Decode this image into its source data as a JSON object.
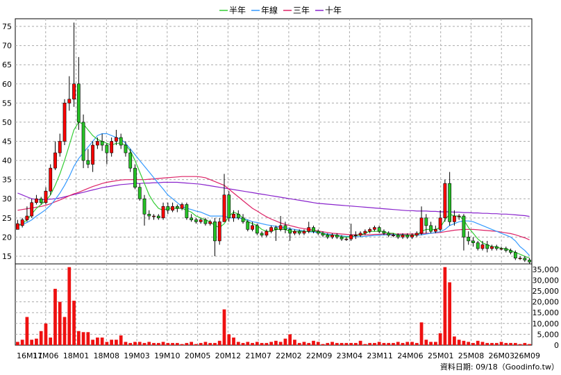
{
  "colors": {
    "up": "#26c226",
    "down": "#ff0000",
    "volume": "#ee1111",
    "ma_half_year": "#33cc33",
    "ma_year": "#3399ff",
    "ma_three_year": "#dd2266",
    "ma_ten_year": "#8822cc",
    "grid": "#aaaaaa",
    "plot_bg": "#ffffff"
  },
  "footer": "資料日期: 09/18（Goodinfo.tw）",
  "chart_data": [
    {
      "type": "candlestick",
      "legend": [
        "半年",
        "年線",
        "三年",
        "十年"
      ],
      "ylim": [
        13,
        77
      ],
      "yticks": [
        15,
        20,
        25,
        30,
        35,
        40,
        45,
        50,
        55,
        60,
        65,
        70,
        75
      ],
      "xtick_labels": [
        "16M11",
        "17M06",
        "18M01",
        "18M08",
        "19M03",
        "19M10",
        "20M05",
        "20M12",
        "21M07",
        "22M02",
        "22M09",
        "23M04",
        "23M11",
        "24M06",
        "25M01",
        "25M08",
        "26M03",
        "26M09"
      ],
      "candles": [
        [
          22,
          23.5,
          24.5,
          22
        ],
        [
          23,
          24.5,
          25,
          22.5
        ],
        [
          24.5,
          25.5,
          28,
          24
        ],
        [
          25.5,
          29,
          30,
          25
        ],
        [
          29,
          30,
          31,
          28.5
        ],
        [
          30,
          29,
          30.5,
          28.5
        ],
        [
          29,
          32,
          33,
          28.5
        ],
        [
          32,
          38,
          39,
          31
        ],
        [
          38,
          42,
          45,
          37.5
        ],
        [
          42,
          45,
          47,
          41
        ],
        [
          45,
          55,
          56,
          44
        ],
        [
          55,
          56,
          62,
          53
        ],
        [
          56,
          60,
          76,
          54
        ],
        [
          60,
          50,
          67,
          48
        ],
        [
          50,
          40,
          52,
          38
        ],
        [
          40,
          39,
          43,
          38
        ],
        [
          39,
          44,
          45,
          37
        ],
        [
          44,
          45,
          46,
          43
        ],
        [
          45,
          44,
          47,
          42.5
        ],
        [
          44,
          42,
          44.5,
          39
        ],
        [
          42,
          45,
          46,
          41
        ],
        [
          45,
          46,
          48,
          44
        ],
        [
          46,
          44,
          47,
          43
        ],
        [
          44,
          42,
          45,
          41
        ],
        [
          42,
          38,
          43,
          37
        ],
        [
          38,
          33,
          39,
          32.5
        ],
        [
          33,
          30,
          34,
          29.5
        ],
        [
          30,
          26,
          31,
          23
        ],
        [
          26,
          25.5,
          27,
          24.5
        ],
        [
          25.5,
          25.5,
          26,
          24.5
        ],
        [
          25.5,
          25,
          26,
          24.5
        ],
        [
          25,
          28,
          29,
          24.5
        ],
        [
          28,
          27,
          29,
          26
        ],
        [
          27,
          28,
          29,
          26.5
        ],
        [
          28,
          27.5,
          28.5,
          26.5
        ],
        [
          27.5,
          28.5,
          29,
          27
        ],
        [
          28.5,
          25,
          29,
          24.5
        ],
        [
          25,
          24.5,
          26,
          24
        ],
        [
          24.5,
          24,
          25,
          23.5
        ],
        [
          24,
          24.5,
          25,
          23.5
        ],
        [
          24.5,
          23.5,
          25,
          23
        ],
        [
          23.5,
          24,
          24.5,
          23
        ],
        [
          24,
          19,
          25,
          15
        ],
        [
          19,
          24,
          25,
          18
        ],
        [
          24,
          31,
          36.5,
          24
        ],
        [
          31,
          25,
          32,
          24
        ],
        [
          25,
          26,
          27,
          24
        ],
        [
          26,
          25,
          27,
          24.5
        ],
        [
          25,
          24,
          26,
          23.5
        ],
        [
          24,
          22,
          24.5,
          21.5
        ],
        [
          22,
          23,
          24,
          21.5
        ],
        [
          23,
          21,
          23.5,
          20.5
        ],
        [
          21,
          20.5,
          21.5,
          20
        ],
        [
          20.5,
          21.5,
          22,
          20
        ],
        [
          21.5,
          22.5,
          23,
          21
        ],
        [
          22.5,
          22,
          23,
          19
        ],
        [
          22,
          23,
          25.5,
          21.5
        ],
        [
          23,
          22,
          24,
          21
        ],
        [
          22,
          21,
          22.5,
          19
        ],
        [
          21,
          21.5,
          22,
          20.5
        ],
        [
          21.5,
          21,
          22,
          20.5
        ],
        [
          21,
          21.5,
          22,
          20.5
        ],
        [
          21.5,
          22.5,
          24,
          21
        ],
        [
          22.5,
          21.5,
          23,
          21
        ],
        [
          21.5,
          21,
          22,
          20.5
        ],
        [
          21,
          20.5,
          21.5,
          20
        ],
        [
          20.5,
          20,
          21,
          19.5
        ],
        [
          20,
          20.5,
          21,
          19.5
        ],
        [
          20.5,
          20,
          21,
          19.5
        ],
        [
          20,
          19.5,
          20.5,
          19
        ],
        [
          19.5,
          19.5,
          20,
          19
        ],
        [
          19.5,
          20.5,
          23.5,
          19
        ],
        [
          20.5,
          20.5,
          21.5,
          19.5
        ],
        [
          20.5,
          21,
          21.5,
          20
        ],
        [
          21,
          21.5,
          22,
          20.5
        ],
        [
          21.5,
          22,
          22.5,
          21
        ],
        [
          22,
          22.5,
          23,
          21.5
        ],
        [
          22.5,
          21.5,
          23,
          21
        ],
        [
          21.5,
          21,
          22,
          20.5
        ],
        [
          21,
          20.5,
          21.5,
          20
        ],
        [
          20.5,
          20.5,
          21,
          20
        ],
        [
          20.5,
          20,
          21,
          19.5
        ],
        [
          20,
          20.5,
          21,
          19.5
        ],
        [
          20.5,
          20,
          21,
          19.5
        ],
        [
          20,
          20.5,
          21,
          19.5
        ],
        [
          20.5,
          21,
          21.5,
          20
        ],
        [
          21,
          25,
          28,
          20.5
        ],
        [
          25,
          23,
          26,
          21
        ],
        [
          23,
          21.5,
          24,
          21
        ],
        [
          21.5,
          22,
          23,
          21
        ],
        [
          22,
          25,
          27,
          21.5
        ],
        [
          25,
          34,
          35,
          24
        ],
        [
          34,
          24,
          37,
          23
        ],
        [
          24,
          25.5,
          27,
          23
        ],
        [
          25.5,
          25.5,
          26,
          24.5
        ],
        [
          25.5,
          20,
          26,
          16.5
        ],
        [
          20,
          19,
          21.5,
          18
        ],
        [
          19,
          18.5,
          20,
          17.5
        ],
        [
          18.5,
          17,
          19,
          16.5
        ],
        [
          17,
          18,
          19,
          16.5
        ],
        [
          18,
          17,
          19,
          16
        ],
        [
          17,
          17.5,
          18,
          16.5
        ],
        [
          17.5,
          17,
          18,
          16.5
        ],
        [
          17,
          17,
          17.5,
          16.5
        ],
        [
          17,
          16.5,
          17.5,
          16
        ],
        [
          16.5,
          16,
          17,
          15.5
        ],
        [
          16,
          14.5,
          16.5,
          14
        ],
        [
          14.5,
          14.5,
          15,
          14
        ],
        [
          14.5,
          14,
          15,
          13.5
        ],
        [
          14,
          13.5,
          14.5,
          13
        ]
      ],
      "ma_half_year": [
        23,
        23.5,
        24.5,
        26,
        27.5,
        28.5,
        29.5,
        31,
        33.5,
        36.5,
        40,
        44,
        48,
        50,
        49.5,
        48,
        46.5,
        45.5,
        45,
        44.5,
        44,
        44.5,
        44.5,
        44,
        42.5,
        40,
        37,
        34,
        31,
        29,
        27.5,
        27,
        27.5,
        27.5,
        27.5,
        27.5,
        27,
        26.5,
        25.5,
        25,
        24.5,
        24,
        23,
        22.5,
        23.5,
        25.5,
        26.5,
        26,
        25,
        24,
        23.5,
        23,
        22,
        21.5,
        21.5,
        22,
        22,
        22,
        21.5,
        21.5,
        21.5,
        21.5,
        21.5,
        21.5,
        21.5,
        21,
        20.5,
        20.5,
        20.5,
        20,
        20,
        20,
        20.5,
        20.5,
        21,
        21.5,
        21.5,
        21.5,
        21.5,
        21,
        21,
        20.5,
        20.5,
        20.5,
        20.5,
        20.5,
        21.5,
        22,
        22,
        22,
        22.5,
        24.5,
        26,
        25.5,
        25.5,
        24.5,
        22.5,
        21,
        19.5,
        18.5,
        18,
        17.5,
        17.5,
        17,
        17,
        16.5,
        16,
        15.5,
        15,
        14.5
      ],
      "ma_year": [
        23,
        23.3,
        23.8,
        24.5,
        25.5,
        26.3,
        27.2,
        28.3,
        29.8,
        31.5,
        33.5,
        35.8,
        38.5,
        40.5,
        42,
        43.5,
        45,
        46.5,
        47,
        47,
        46.5,
        46,
        45.5,
        44.5,
        43,
        41.5,
        40,
        38.5,
        37,
        35.5,
        34,
        32.5,
        31,
        30,
        29,
        28,
        27.5,
        27.2,
        26.8,
        26.5,
        26,
        25.5,
        25.5,
        25.5,
        25.5,
        25,
        25,
        25,
        24.8,
        24.5,
        24,
        23.8,
        23.5,
        23.2,
        23,
        22.8,
        22.6,
        22.4,
        22.2,
        22,
        21.8,
        21.6,
        21.4,
        21.3,
        21.2,
        21,
        20.8,
        20.6,
        20.5,
        20.3,
        20.2,
        20.1,
        20.1,
        20.1,
        20.2,
        20.3,
        20.4,
        20.5,
        20.6,
        20.6,
        20.6,
        20.6,
        20.6,
        20.5,
        20.5,
        20.5,
        20.6,
        20.8,
        21,
        21.2,
        21.4,
        22,
        23,
        23.5,
        24,
        24.2,
        24.2,
        24,
        23.5,
        23,
        22.5,
        22,
        21.5,
        21,
        20.5,
        20,
        19,
        17.5,
        16.5,
        15.2
      ],
      "ma_three_year": [
        27,
        27.2,
        27.4,
        27.6,
        27.8,
        28,
        28.3,
        28.7,
        29.2,
        29.7,
        30.2,
        30.8,
        31.3,
        31.7,
        32.2,
        32.7,
        33.2,
        33.6,
        34,
        34.3,
        34.5,
        34.7,
        34.9,
        35,
        35,
        35,
        35,
        35,
        35.1,
        35.2,
        35.3,
        35.4,
        35.5,
        35.6,
        35.7,
        35.8,
        35.8,
        35.8,
        35.8,
        35.7,
        35.5,
        35,
        34.5,
        34,
        33.5,
        32.5,
        31.5,
        30.5,
        29.5,
        28.5,
        27.5,
        26.8,
        26,
        25.3,
        24.7,
        24.2,
        23.7,
        23.3,
        23,
        22.7,
        22.4,
        22.2,
        22,
        21.8,
        21.6,
        21.4,
        21.2,
        21,
        20.9,
        20.8,
        20.7,
        20.6,
        20.6,
        20.6,
        20.6,
        20.6,
        20.7,
        20.7,
        20.8,
        20.8,
        20.8,
        20.8,
        20.8,
        20.8,
        20.8,
        20.8,
        20.9,
        21,
        21,
        21.1,
        21.2,
        21.4,
        21.6,
        21.8,
        21.9,
        22,
        22,
        22,
        21.9,
        21.8,
        21.7,
        21.6,
        21.5,
        21.3,
        21.1,
        20.9,
        20.6,
        20.2,
        19.8,
        19.3
      ],
      "ma_ten_year": [
        31.5,
        31,
        30.5,
        30,
        29.8,
        29.8,
        29.8,
        29.9,
        30,
        30.2,
        30.5,
        30.8,
        31.1,
        31.4,
        31.7,
        32,
        32.3,
        32.6,
        32.9,
        33.1,
        33.3,
        33.5,
        33.7,
        33.8,
        33.9,
        34,
        34,
        34.1,
        34.1,
        34.2,
        34.2,
        34.3,
        34.3,
        34.3,
        34.3,
        34.2,
        34.1,
        34,
        33.9,
        33.8,
        33.6,
        33.4,
        33.2,
        33,
        32.8,
        32.6,
        32.4,
        32.2,
        32,
        31.8,
        31.6,
        31.4,
        31.2,
        31,
        30.8,
        30.6,
        30.4,
        30.2,
        30,
        29.8,
        29.6,
        29.4,
        29.2,
        29,
        28.8,
        28.7,
        28.6,
        28.5,
        28.4,
        28.3,
        28.2,
        28.1,
        28,
        27.9,
        27.8,
        27.7,
        27.6,
        27.5,
        27.4,
        27.3,
        27.2,
        27.1,
        27,
        26.9,
        26.9,
        26.8,
        26.8,
        26.8,
        26.7,
        26.7,
        26.6,
        26.6,
        26.6,
        26.5,
        26.5,
        26.4,
        26.4,
        26.3,
        26.3,
        26.2,
        26.2,
        26.1,
        26.1,
        26,
        26,
        25.9,
        25.8,
        25.7,
        25.6,
        25.4
      ]
    },
    {
      "type": "bar",
      "series": [
        {
          "name": "",
          "values": [
            1500,
            2500,
            13000,
            2500,
            3000,
            6500,
            10000,
            3500,
            26000,
            20000,
            13000,
            36000,
            20500,
            6500,
            6000,
            6000,
            2500,
            3500,
            3500,
            1500,
            2500,
            2500,
            4500,
            1500,
            1000,
            1500,
            1500,
            1000,
            1500,
            1000,
            1000,
            1500,
            1000,
            1000,
            1000,
            500,
            1000,
            1500,
            500,
            1000,
            1500,
            1000,
            1000,
            2000,
            16500,
            5000,
            3500,
            1500,
            1000,
            1500,
            1000,
            1500,
            1000,
            1000,
            1500,
            2000,
            1500,
            3000,
            5000,
            2500,
            1000,
            1500,
            1000,
            2000,
            1500,
            500,
            1000,
            1500,
            1000,
            1000,
            1000,
            1000,
            1000,
            2000,
            500,
            1000,
            1000,
            1500,
            1000,
            1000,
            1000,
            1500,
            1000,
            1500,
            1500,
            1000,
            10500,
            2500,
            1500,
            1500,
            5500,
            36000,
            29000,
            4000,
            2500,
            2000,
            1500,
            1000,
            2000,
            1500,
            1000,
            1000,
            1000,
            1500,
            1000,
            1000,
            1000,
            500,
            1000,
            500
          ]
        }
      ],
      "ylim": [
        0,
        37500
      ],
      "yticks": [
        0,
        5000,
        10000,
        15000,
        20000,
        25000,
        30000,
        35000
      ],
      "ytick_labels": [
        "0",
        "5,000",
        "10,000",
        "15,000",
        "20,000",
        "25,000",
        "30,000",
        "35,000"
      ]
    }
  ]
}
